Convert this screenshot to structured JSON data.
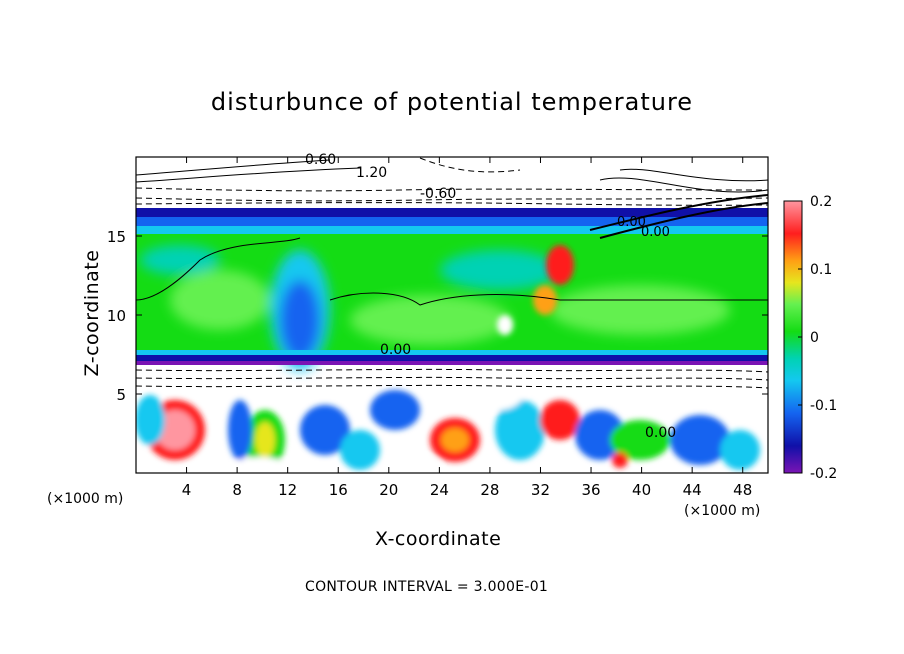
{
  "chart_data": {
    "type": "heatmap",
    "title": "disturbunce of potential temperature",
    "xlabel": "X-coordinate",
    "ylabel": "Z-coordinate",
    "x_unit": "(×1000 m)",
    "z_unit": "(×1000 m)",
    "xlim": [
      0,
      50
    ],
    "ylim": [
      0,
      20
    ],
    "x_ticks": [
      4,
      8,
      12,
      16,
      20,
      24,
      28,
      32,
      36,
      40,
      44,
      48
    ],
    "y_ticks": [
      5,
      10,
      15
    ],
    "colorbar": {
      "range": [
        -0.2,
        0.2
      ],
      "tick_labels": [
        "0.2",
        "0.1",
        "0",
        "-0.1",
        "-0.2"
      ],
      "tick_values": [
        0.2,
        0.1,
        0,
        -0.1,
        -0.2
      ]
    },
    "contour_labels": [
      "0.60",
      "1.20",
      "-0.60",
      "0.00",
      "0.00",
      "0.00",
      "0.00"
    ],
    "contour_interval_text": "CONTOUR INTERVAL = 3.000E-01",
    "grid": false
  },
  "colors": {
    "purple": "#7a14b4",
    "navy": "#1010a8",
    "blue": "#1464f0",
    "cyan": "#14c8f0",
    "teal": "#00d2b4",
    "green": "#14dc14",
    "light_green": "#64f050",
    "yellow": "#e6e61e",
    "orange": "#ffa014",
    "red": "#ff1e1e",
    "pink": "#ff96a0"
  }
}
